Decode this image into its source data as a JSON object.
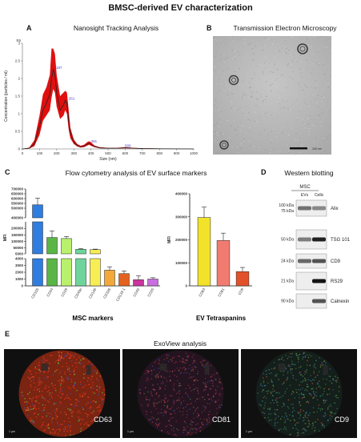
{
  "figure": {
    "title": "BMSC-derived EV characterization",
    "panels": {
      "A": {
        "letter": "A",
        "title": "Nanosight Tracking Analysis"
      },
      "B": {
        "letter": "B",
        "title": "Transmission Electron Microscopy",
        "scale_bar": "100 nm"
      },
      "C": {
        "letter": "C",
        "title": "Flow cytometry analysis of EV surface markers"
      },
      "D": {
        "letter": "D",
        "title": "Western blotting"
      },
      "E": {
        "letter": "E",
        "title": "ExoView analysis"
      }
    }
  },
  "colors": {
    "nta_fill": "#e01010",
    "nta_line": "#222222",
    "tem_bg": "#b9b9b9",
    "tetra_colors": [
      "#f2e22a",
      "#f27b6f",
      "#e2512a"
    ],
    "marker_colors": [
      "#2f7de0",
      "#5ab546",
      "#b9f06c",
      "#6fd49b",
      "#f7ee55",
      "#f2a93a",
      "#e4621f",
      "#c9359c",
      "#c86ee0"
    ]
  },
  "chart_data": [
    {
      "type": "area",
      "panel": "A",
      "title": "Nanosight Tracking Analysis",
      "xlabel": "Size (nm)",
      "ylabel": "Concentration (particles / ml)",
      "y_exponent": "E6",
      "xlim": [
        0,
        1000
      ],
      "ylim": [
        0,
        3
      ],
      "x_ticks": [
        0,
        100,
        200,
        300,
        400,
        500,
        600,
        700,
        800,
        900,
        1000
      ],
      "y_ticks": [
        0,
        0.5,
        1,
        1.5,
        2,
        2.5,
        3
      ],
      "x": [
        0,
        40,
        70,
        100,
        120,
        140,
        160,
        170,
        180,
        190,
        200,
        220,
        240,
        250,
        260,
        270,
        280,
        300,
        320,
        340,
        360,
        380,
        390,
        400,
        420,
        450,
        500,
        550,
        600,
        650,
        700,
        800,
        900,
        1000
      ],
      "y": [
        0,
        0.02,
        0.15,
        0.65,
        1.1,
        1.3,
        1.55,
        2.0,
        2.25,
        2.1,
        1.6,
        1.1,
        1.25,
        1.38,
        1.3,
        0.8,
        0.45,
        0.2,
        0.1,
        0.06,
        0.08,
        0.14,
        0.16,
        0.13,
        0.07,
        0.03,
        0.02,
        0.02,
        0.03,
        0.02,
        0.01,
        0.005,
        0.003,
        0
      ],
      "upper": [
        0,
        0.04,
        0.25,
        0.95,
        1.55,
        1.75,
        2.1,
        2.85,
        2.85,
        2.7,
        2.1,
        1.5,
        1.6,
        1.65,
        1.6,
        1.1,
        0.6,
        0.27,
        0.14,
        0.09,
        0.12,
        0.2,
        0.22,
        0.19,
        0.1,
        0.05,
        0.03,
        0.03,
        0.05,
        0.03,
        0.02,
        0.01,
        0.005,
        0
      ],
      "lower": [
        0,
        0.01,
        0.08,
        0.4,
        0.8,
        0.95,
        1.1,
        1.45,
        1.7,
        1.6,
        1.2,
        0.85,
        0.95,
        1.1,
        1.0,
        0.55,
        0.3,
        0.14,
        0.07,
        0.04,
        0.05,
        0.1,
        0.12,
        0.09,
        0.05,
        0.02,
        0.01,
        0.01,
        0.02,
        0.01,
        0.005,
        0.002,
        0.001,
        0
      ],
      "peak_labels": [
        {
          "x": 187,
          "y": 2.25,
          "text": "187"
        },
        {
          "x": 261,
          "y": 1.38,
          "text": "261"
        },
        {
          "x": 391,
          "y": 0.16,
          "text": "391"
        },
        {
          "x": 589,
          "y": 0.03,
          "text": "589"
        }
      ]
    },
    {
      "type": "bar",
      "panel": "C-left",
      "xlabel": "MSC markers",
      "ylabel": "MFI",
      "broken_axis": true,
      "segments": [
        {
          "range": [
            400000,
            700000
          ],
          "ticks": [
            400000,
            500000,
            550000,
            600000,
            650000,
            700000
          ],
          "tick_labels": [
            "400000",
            "500000",
            "550000",
            "600000",
            "650000",
            "700000"
          ]
        },
        {
          "range": [
            5000,
            250000
          ],
          "ticks": [
            5000,
            50000,
            100000,
            150000,
            200000
          ],
          "tick_labels": [
            "5000",
            "50000",
            "100000",
            "150000",
            "200000"
          ]
        },
        {
          "range": [
            0,
            4000
          ],
          "ticks": [
            0,
            1000,
            2000,
            3000,
            4000
          ],
          "tick_labels": [
            "0",
            "1000",
            "2000",
            "3000",
            "4000"
          ]
        }
      ],
      "categories": [
        "CD105",
        "CD44",
        "CD29",
        "CD49e",
        "CD146",
        "CD326",
        "CD133-1",
        "CD45",
        "CD25"
      ],
      "values": [
        535000,
        130000,
        122000,
        40000,
        37000,
        2300,
        1800,
        900,
        1000
      ],
      "errors": [
        70000,
        50000,
        15000,
        5000,
        4000,
        500,
        400,
        600,
        200
      ]
    },
    {
      "type": "bar",
      "panel": "C-right",
      "xlabel": "EV Tetraspanins",
      "ylabel": "MFI",
      "ylim": [
        0,
        400000
      ],
      "y_ticks": [
        0,
        100000,
        200000,
        300000,
        400000
      ],
      "y_tick_labels": [
        "0",
        "100000",
        "200000",
        "300000",
        "400000"
      ],
      "categories": [
        "CD63",
        "CD81",
        "CD9"
      ],
      "values": [
        297000,
        197000,
        62000
      ],
      "errors": [
        45000,
        32000,
        18000
      ]
    }
  ],
  "western_blot": {
    "group_label": "MSC",
    "lanes": [
      "EVs",
      "Cells"
    ],
    "rows": [
      {
        "kda": "100 kDa",
        "kda2": "75 kDa",
        "protein": "Alix",
        "ev": 0.55,
        "cell": 0.45
      },
      {
        "kda": "50 kDa",
        "protein": "TSG 101",
        "ev": 0.5,
        "cell": 0.95
      },
      {
        "kda": "24 kDa",
        "protein": "CD9",
        "ev": 0.6,
        "cell": 0.7
      },
      {
        "kda": "21 kDa",
        "protein": "RS29",
        "ev": 0.0,
        "cell": 1.0
      },
      {
        "kda": "90 kDa",
        "protein": "Calnexin",
        "ev": 0.0,
        "cell": 0.7
      }
    ]
  },
  "exoview": {
    "images": [
      {
        "label": "CD63",
        "dominant": "#d2301e"
      },
      {
        "label": "CD81",
        "dominant": "#8a3040"
      },
      {
        "label": "CD9",
        "dominant": "#3b6a5a"
      }
    ],
    "scale_label": "1 µm"
  }
}
